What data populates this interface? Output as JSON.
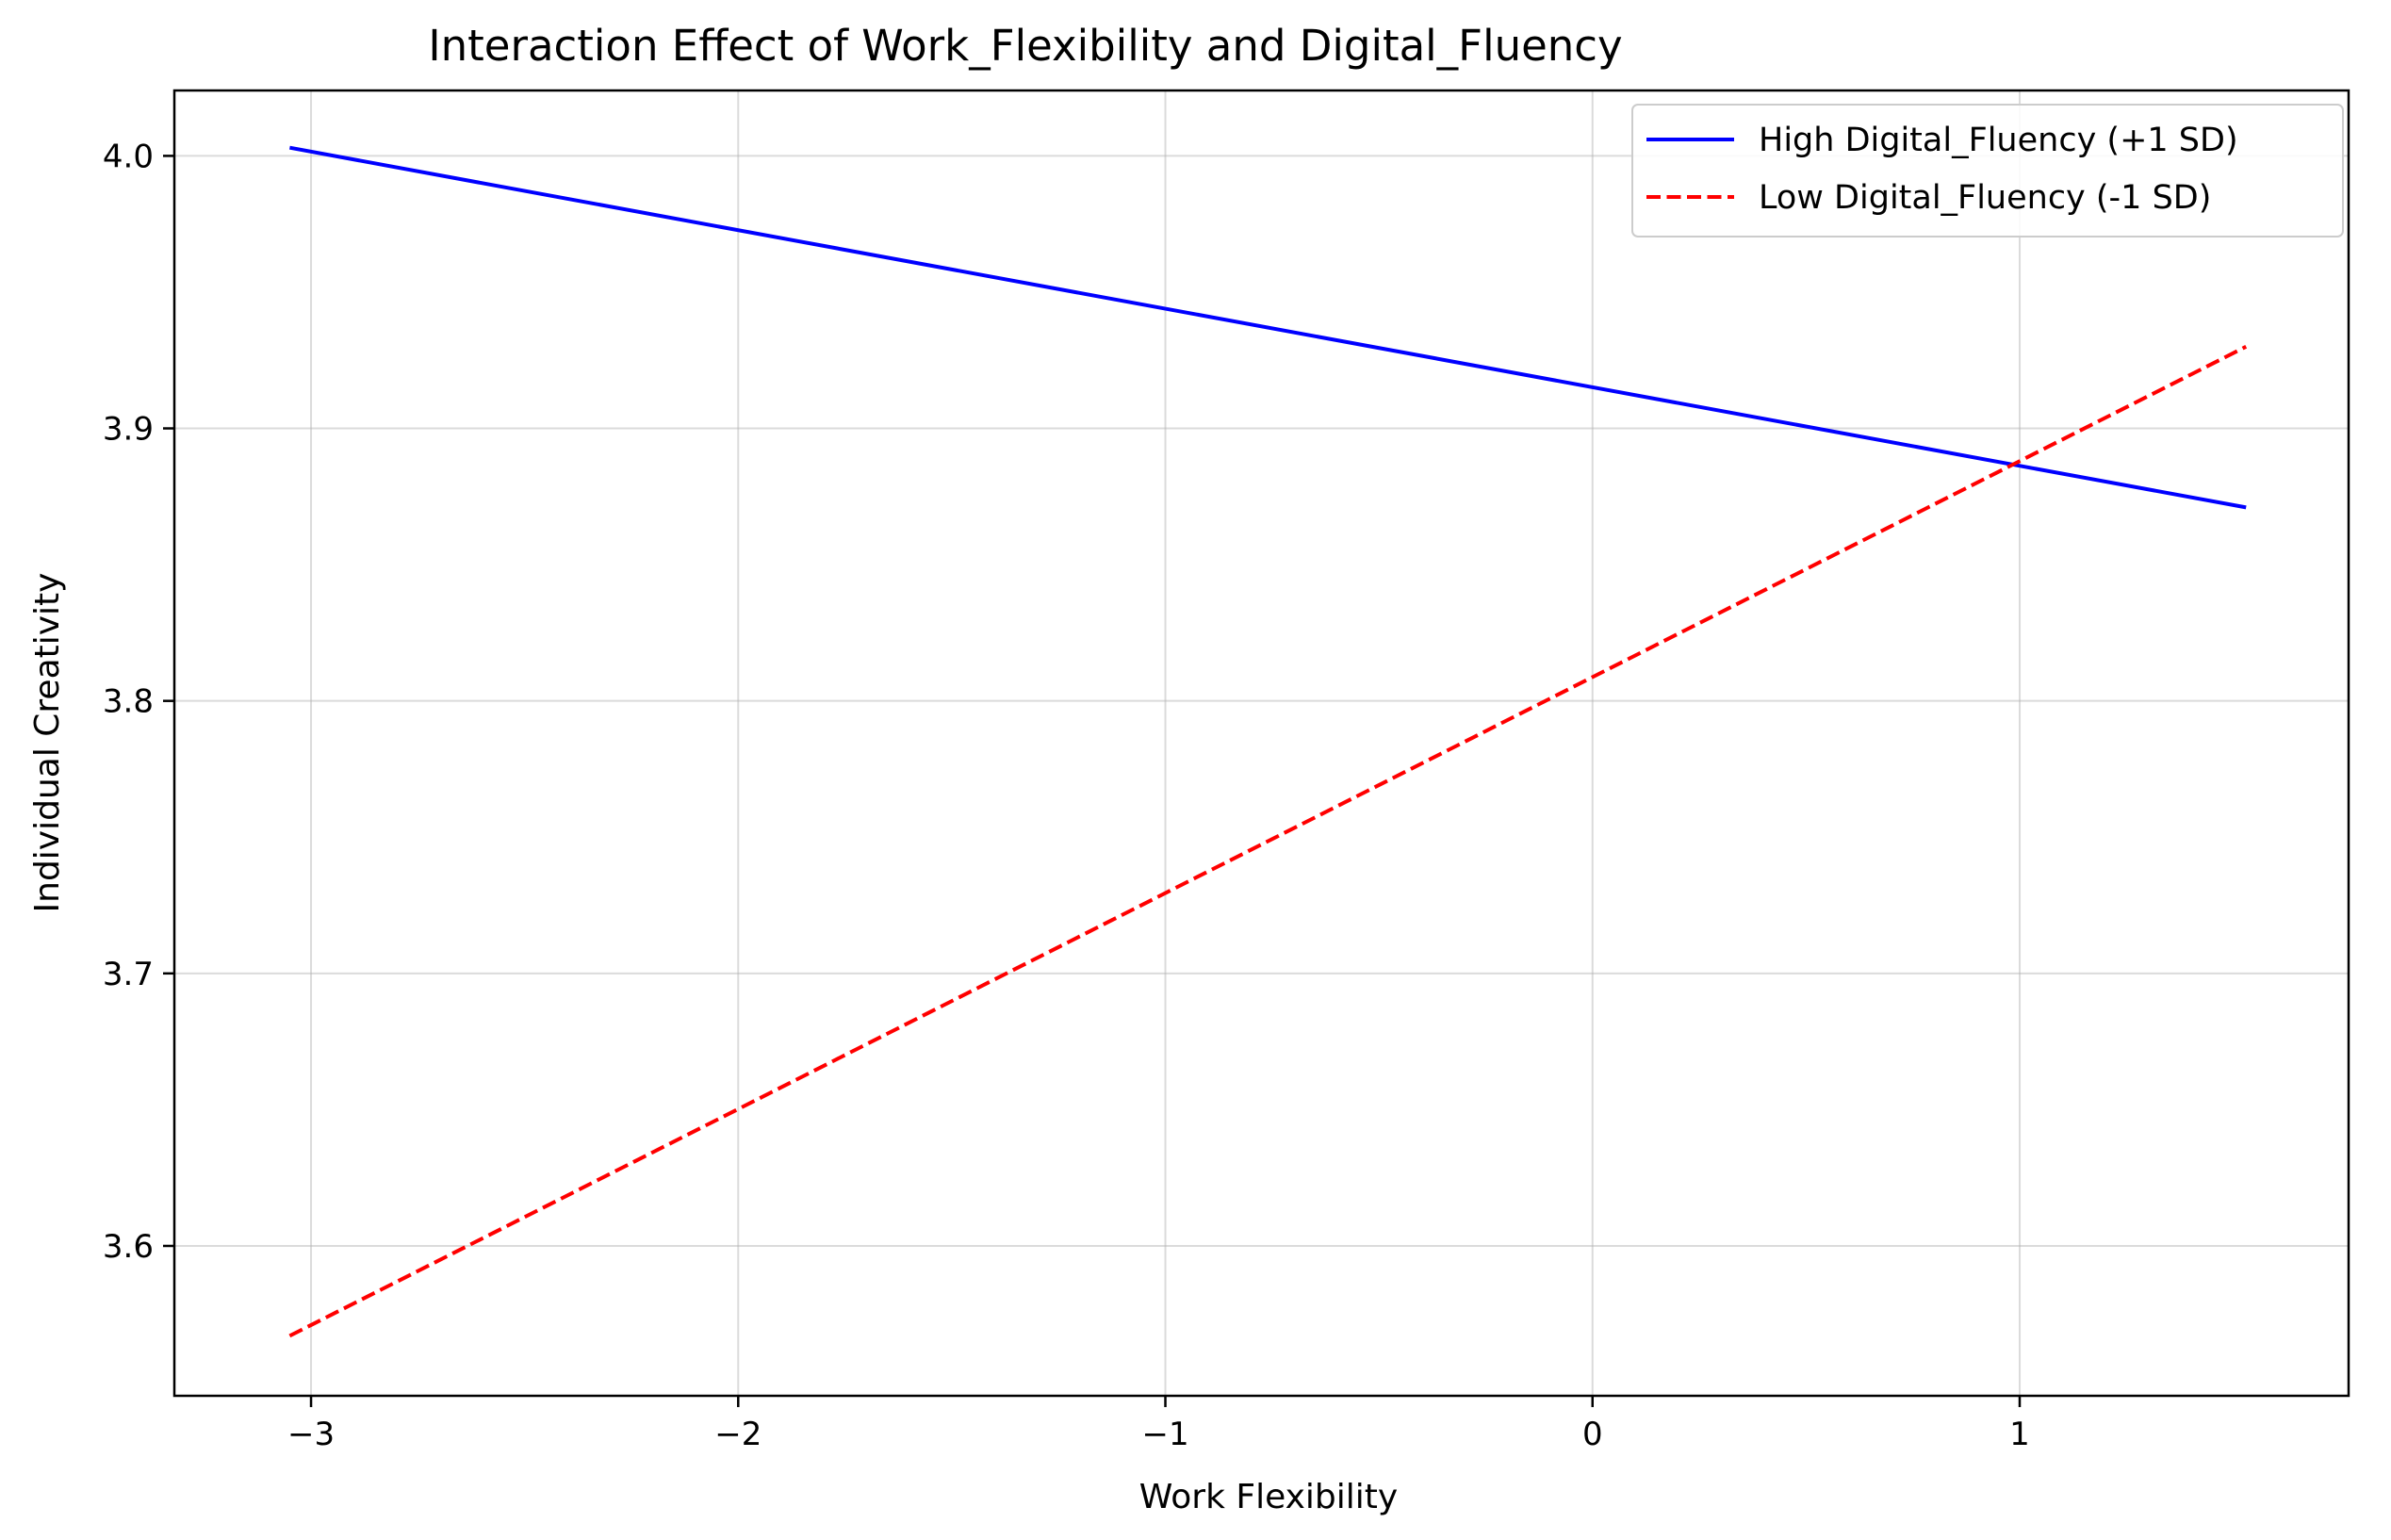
{
  "chart_data": {
    "type": "line",
    "title": "Interaction Effect of Work_Flexibility and Digital_Fluency",
    "xlabel": "Work Flexibility",
    "ylabel": "Individual Creativity",
    "xlim": [
      -3.32,
      1.77
    ],
    "ylim": [
      3.545,
      4.024
    ],
    "xticks": [
      -3,
      -2,
      -1,
      0,
      1
    ],
    "xtick_labels": [
      "−3",
      "−2",
      "−1",
      "0",
      "1"
    ],
    "yticks": [
      3.6,
      3.7,
      3.8,
      3.9,
      4.0
    ],
    "ytick_labels": [
      "3.6",
      "3.7",
      "3.8",
      "3.9",
      "4.0"
    ],
    "grid": true,
    "legend_position": "top-right",
    "series": [
      {
        "name": "High Digital_Fluency (+1 SD)",
        "color": "#0000ff",
        "style": "solid",
        "x": [
          -3.05,
          1.53
        ],
        "y": [
          4.003,
          3.871
        ]
      },
      {
        "name": "Low Digital_Fluency (-1 SD)",
        "color": "#ff0000",
        "style": "dashed",
        "x": [
          -3.05,
          1.53
        ],
        "y": [
          3.567,
          3.93
        ]
      }
    ]
  }
}
